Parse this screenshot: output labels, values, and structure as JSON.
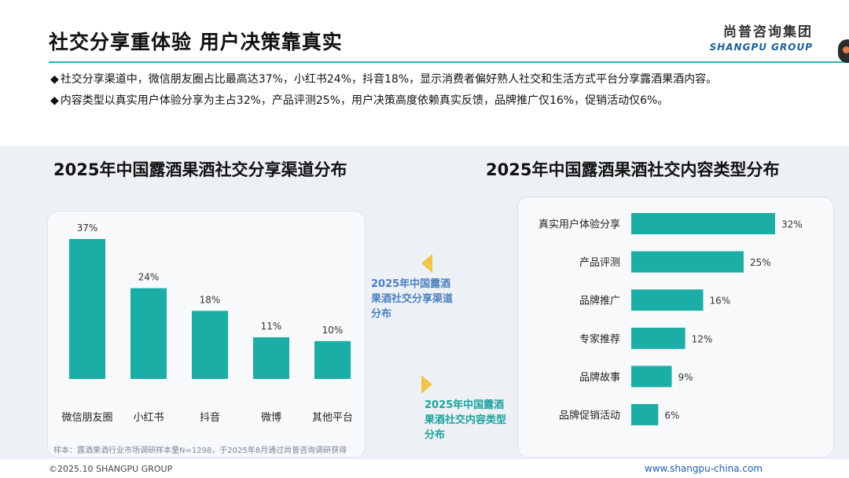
{
  "header": {
    "title": "社交分享重体验 用户决策靠真实",
    "brand_cn": "尚普咨询集团",
    "brand_en": "SHANGPU GROUP"
  },
  "bullets": [
    {
      "mark": "◆",
      "text": "社交分享渠道中，微信朋友圈占比最高达37%，小红书24%，抖音18%，显示消费者偏好熟人社交和生活方式平台分享露酒果酒内容。"
    },
    {
      "mark": "◆",
      "text": "内容类型以真实用户体验分享为主占32%，产品评测25%，用户决策高度依赖真实反馈，品牌推广仅16%，促销活动仅6%。"
    }
  ],
  "annotations": {
    "left_label": "2025年中国露酒果酒社交分享渠道分布",
    "right_label": "2025年中国露酒果酒社交内容类型分布"
  },
  "chart_data": [
    {
      "type": "bar",
      "title": "2025年中国露酒果酒社交分享渠道分布",
      "categories": [
        "微信朋友圈",
        "小红书",
        "抖音",
        "微博",
        "其他平台"
      ],
      "values": [
        37,
        24,
        18,
        11,
        10
      ],
      "value_suffix": "%",
      "ylim": [
        0,
        37
      ],
      "color": "#1aaea6"
    },
    {
      "type": "bar",
      "orientation": "horizontal",
      "title": "2025年中国露酒果酒社交内容类型分布",
      "categories": [
        "真实用户体验分享",
        "产品评测",
        "品牌推广",
        "专家推荐",
        "品牌故事",
        "品牌促销活动"
      ],
      "values": [
        32,
        25,
        16,
        12,
        9,
        6
      ],
      "value_suffix": "%",
      "xlim": [
        0,
        32
      ],
      "color": "#1aaea6"
    }
  ],
  "footer": {
    "note": "样本：露酒果酒行业市场调研样本量N=1298，于2025年8月通过尚普咨询调研获得",
    "copyright": "©2025.10 SHANGPU GROUP",
    "url": "www.shangpu-china.com"
  }
}
